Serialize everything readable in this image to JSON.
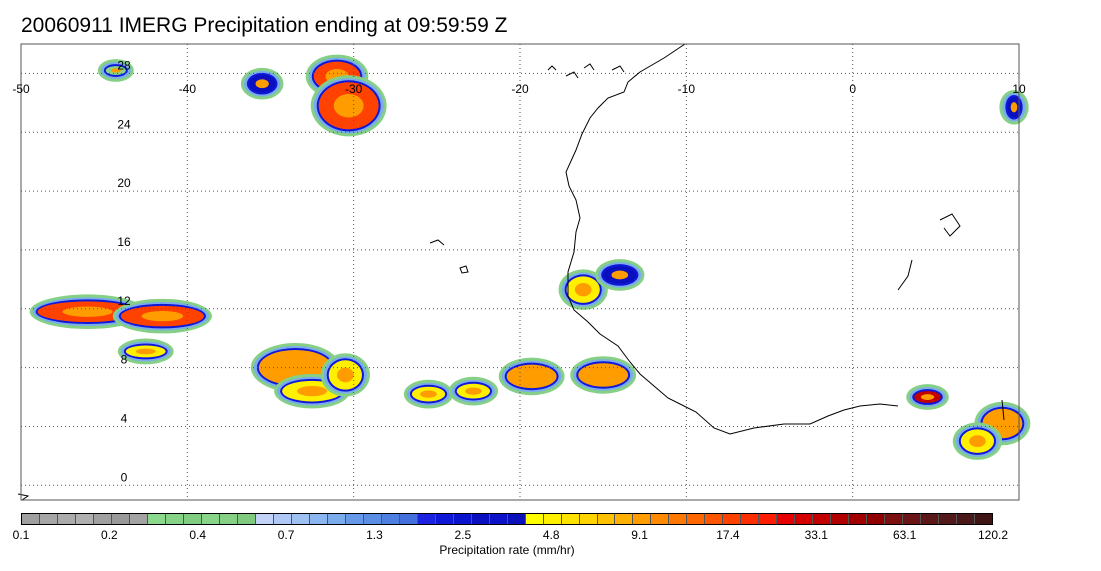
{
  "title": "20060911 IMERG Precipitation ending at 09:59:59 Z",
  "map": {
    "lon_range": [
      -50,
      10
    ],
    "lat_range": [
      -1,
      30
    ],
    "lon_ticks": [
      {
        "value": -50,
        "label": "-50"
      },
      {
        "value": -40,
        "label": "-40"
      },
      {
        "value": -30,
        "label": "-30"
      },
      {
        "value": -20,
        "label": "-20"
      },
      {
        "value": -10,
        "label": "-10"
      },
      {
        "value": 0,
        "label": "0"
      },
      {
        "value": 10,
        "label": "10"
      }
    ],
    "lat_ticks": [
      {
        "value": 0,
        "label": "0"
      },
      {
        "value": 4,
        "label": "4"
      },
      {
        "value": 8,
        "label": "8"
      },
      {
        "value": 12,
        "label": "12"
      },
      {
        "value": 16,
        "label": "16"
      },
      {
        "value": 20,
        "label": "20"
      },
      {
        "value": 24,
        "label": "24"
      },
      {
        "value": 28,
        "label": "28"
      }
    ],
    "grid": true,
    "coastline_color": "#000000",
    "precip_cells": [
      {
        "lon": -31,
        "lat": 27.8,
        "rx": 1.4,
        "ry": 1.0,
        "rate": 17.4
      },
      {
        "lon": -30.3,
        "lat": 25.8,
        "rx": 1.8,
        "ry": 1.6,
        "rate": 17.4
      },
      {
        "lon": -35.5,
        "lat": 27.3,
        "rx": 0.8,
        "ry": 0.6,
        "rate": 2.5
      },
      {
        "lon": -44.3,
        "lat": 28.2,
        "rx": 0.6,
        "ry": 0.3,
        "rate": 0.4
      },
      {
        "lon": -46,
        "lat": 11.8,
        "rx": 3.0,
        "ry": 0.7,
        "rate": 17.4
      },
      {
        "lon": -41.5,
        "lat": 11.5,
        "rx": 2.5,
        "ry": 0.7,
        "rate": 17.4
      },
      {
        "lon": -42.5,
        "lat": 9.1,
        "rx": 1.2,
        "ry": 0.4,
        "rate": 4.8
      },
      {
        "lon": -33.5,
        "lat": 8.0,
        "rx": 2.2,
        "ry": 1.2,
        "rate": 9.1
      },
      {
        "lon": -32.5,
        "lat": 6.4,
        "rx": 1.8,
        "ry": 0.7,
        "rate": 4.8
      },
      {
        "lon": -30.5,
        "lat": 7.5,
        "rx": 1.0,
        "ry": 1.0,
        "rate": 4.8
      },
      {
        "lon": -25.5,
        "lat": 6.2,
        "rx": 1.0,
        "ry": 0.5,
        "rate": 4.8
      },
      {
        "lon": -22.8,
        "lat": 6.4,
        "rx": 1.0,
        "ry": 0.5,
        "rate": 4.8
      },
      {
        "lon": -19.3,
        "lat": 7.4,
        "rx": 1.5,
        "ry": 0.8,
        "rate": 9.1
      },
      {
        "lon": -15,
        "lat": 7.5,
        "rx": 1.5,
        "ry": 0.8,
        "rate": 9.1
      },
      {
        "lon": -16.2,
        "lat": 13.3,
        "rx": 1.0,
        "ry": 0.9,
        "rate": 4.8
      },
      {
        "lon": -14,
        "lat": 14.3,
        "rx": 1.0,
        "ry": 0.6,
        "rate": 2.5
      },
      {
        "lon": 4.5,
        "lat": 6.0,
        "rx": 0.8,
        "ry": 0.4,
        "rate": 33.1
      },
      {
        "lon": 9,
        "lat": 4.2,
        "rx": 1.2,
        "ry": 1.0,
        "rate": 9.1
      },
      {
        "lon": 7.5,
        "lat": 3.0,
        "rx": 1.0,
        "ry": 0.8,
        "rate": 4.8
      },
      {
        "lon": 9.7,
        "lat": 25.7,
        "rx": 0.4,
        "ry": 0.7,
        "rate": 2.5
      }
    ]
  },
  "colorbar": {
    "colors": [
      "#a0a0a0",
      "#a6a6a6",
      "#ababab",
      "#b0b0b0",
      "#a0a0a0",
      "#999999",
      "#a3a3a3",
      "#8cd88c",
      "#86d286",
      "#80cc80",
      "#88d488",
      "#86d086",
      "#80ca80",
      "#c3d3f8",
      "#b0c8f5",
      "#9fc1f2",
      "#8cb6ef",
      "#7aaceb",
      "#6699e8",
      "#5a8ee4",
      "#4d7fe0",
      "#4470dc",
      "#1b22e0",
      "#1018d8",
      "#0a14cc",
      "#0a10c0",
      "#0c12c8",
      "#0a10ba",
      "#ffff00",
      "#fff000",
      "#ffe200",
      "#ffd400",
      "#ffc200",
      "#ffb000",
      "#ff9c00",
      "#ff8a00",
      "#ff7800",
      "#ff6600",
      "#ff5400",
      "#ff4200",
      "#ff2e00",
      "#ff1c00",
      "#e60000",
      "#d40000",
      "#c20000",
      "#b00000",
      "#a00000",
      "#900000",
      "#7a1010",
      "#6a1616",
      "#5c1818",
      "#541a1a",
      "#4a1818",
      "#3f1414"
    ],
    "tick_labels": [
      "0.1",
      "0.2",
      "0.4",
      "0.7",
      "1.3",
      "2.5",
      "4.8",
      "9.1",
      "17.4",
      "33.1",
      "63.1",
      "120.2"
    ],
    "label": "Precipitation rate (mm/hr)"
  }
}
